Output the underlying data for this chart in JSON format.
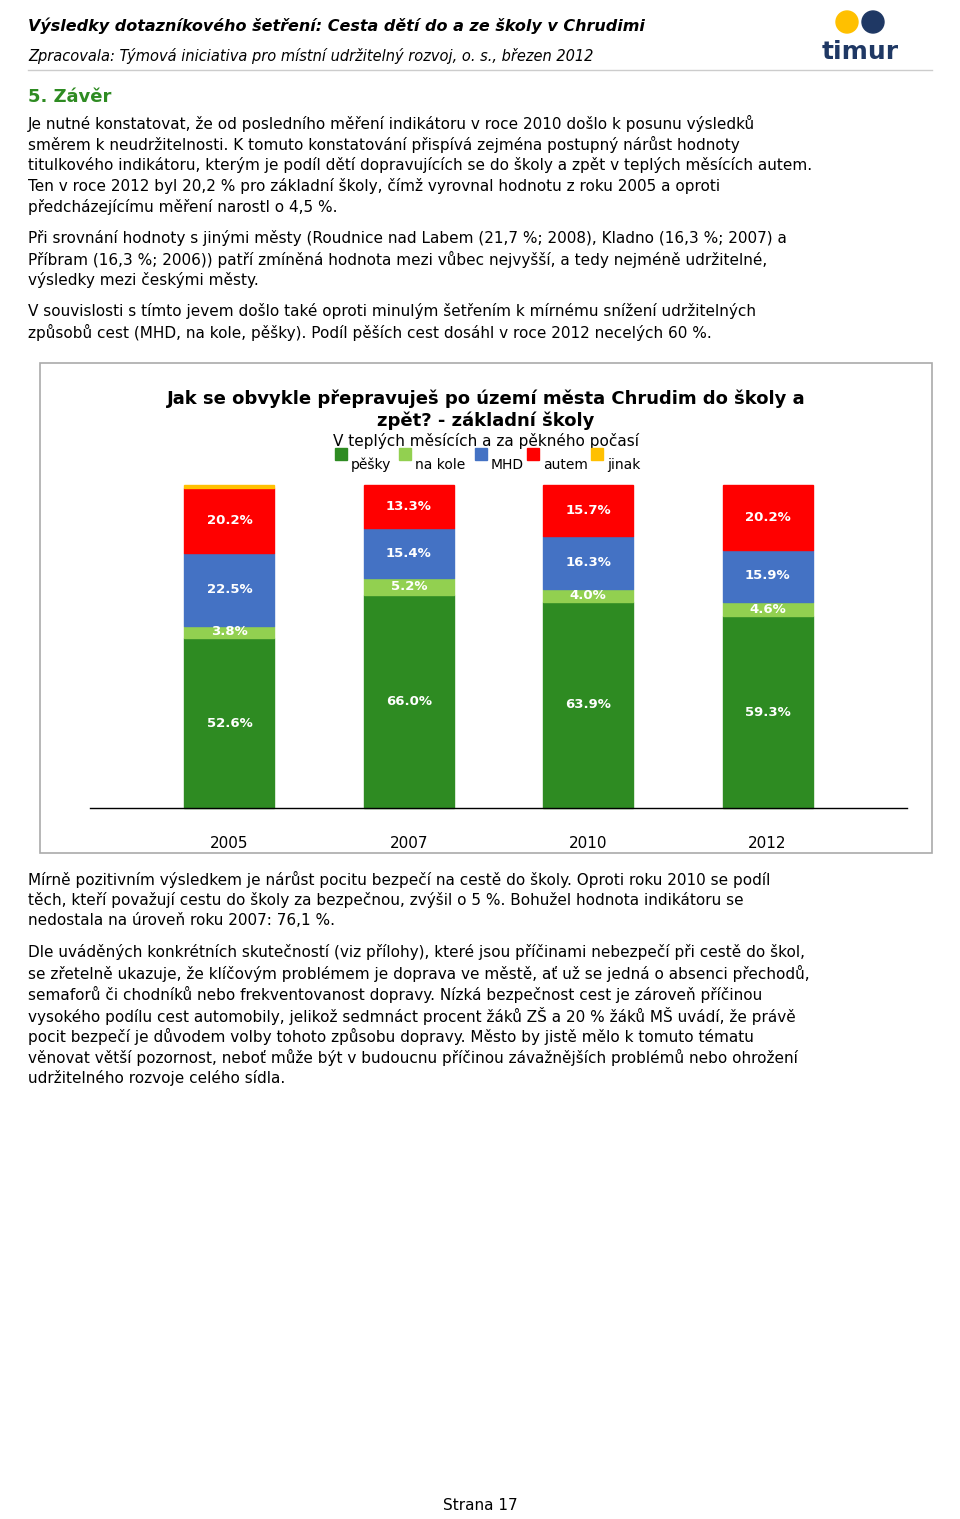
{
  "page_title_line1": "Výsledky dotazníkového šetření: Cesta dětí do a ze školy v Chrudimi",
  "page_subtitle": "Zpracovala: Týmová iniciativa pro místní udržitelný rozvoj, o. s., březen 2012",
  "section_title": "5. Závěr",
  "para1_lines": [
    "Je nutné konstatovat, že od posledního měření indikátoru v roce 2010 došlo k posunu výsledků",
    "směrem k neudržitelnosti. K tomuto konstatování přispívá zejména postupný nárůst hodnoty",
    "titulkového indikátoru, kterým je podíl dětí dopravujících se do školy a zpět v teplých měsících autem.",
    "Ten v roce 2012 byl 20,2 % pro základní školy, čímž vyrovnal hodnotu z roku 2005 a oproti",
    "předcházejícímu měření narostl o 4,5 %."
  ],
  "para2_lines": [
    "Při srovnání hodnoty s jinými městy (Roudnice nad Labem (21,7 %; 2008), Kladno (16,3 %; 2007) a",
    "Příbram (16,3 %; 2006)) patří zmíněná hodnota mezi vůbec nejvyšší, a tedy nejméně udržitelné,",
    "výsledky mezi českými městy."
  ],
  "para3_lines": [
    "V souvislosti s tímto jevem došlo také oproti minulým šetřením k mírnému snížení udržitelných",
    "způsobů cest (MHD, na kole, pěšky). Podíl pěších cest dosáhl v roce 2012 necelých 60 %."
  ],
  "chart_title_line1": "Jak se obvykle přepravuješ po území města Chrudim do školy a",
  "chart_title_line2": "zpět? - základní školy",
  "chart_subtitle": "V teplých měsících a za pěkného počasí",
  "legend_labels": [
    "pěšky",
    "na kole",
    "MHD",
    "autem",
    "jinak"
  ],
  "legend_colors": [
    "#2E8B22",
    "#92D050",
    "#4472C4",
    "#FF0000",
    "#FFC000"
  ],
  "years": [
    "2005",
    "2007",
    "2010",
    "2012"
  ],
  "pesky": [
    52.6,
    66.0,
    63.9,
    59.3
  ],
  "nakole": [
    3.8,
    5.2,
    4.0,
    4.6
  ],
  "MHD": [
    22.5,
    15.4,
    16.3,
    15.9
  ],
  "autem": [
    20.2,
    13.3,
    15.7,
    20.2
  ],
  "jinak": [
    0.9,
    0.0,
    0.0,
    0.0
  ],
  "para4_lines": [
    "Mírně pozitivním výsledkem je nárůst pocitu bezpečí na cestě do školy. Oproti roku 2010 se podíl",
    "těch, kteří považují cestu do školy za bezpečnou, zvýšil o 5 %. Bohužel hodnota indikátoru se",
    "nedostala na úroveň roku 2007: 76,1 %."
  ],
  "para5_lines": [
    "Dle uváděných konkrétních skutečností (viz přílohy), které jsou příčinami nebezpečí při cestě do škol,",
    "se zřetelně ukazuje, že klíčovým problémem je doprava ve městě, ať už se jedná o absenci přechodů,",
    "semaforů či chodníků nebo frekventovanost dopravy. Nízká bezpečnost cest je zároveň příčinou",
    "vysokého podílu cest automobily, jelikož sedmnáct procent žáků ZŠ a 20 % žáků MŠ uvádí, že právě",
    "pocit bezpečí je důvodem volby tohoto způsobu dopravy. Město by jistě mělo k tomuto tématu",
    "věnovat větší pozornost, neboť může být v budoucnu příčinou závažnějších problémů nebo ohrožení",
    "udržitelného rozvoje celého sídla."
  ],
  "page_number": "Strana 17",
  "colors": {
    "pesky": "#2E8B22",
    "nakole": "#92D050",
    "MHD": "#4472C4",
    "autem": "#FF0000",
    "jinak": "#FFC000"
  },
  "section_color": "#2E8B22",
  "header_line_color": "#CCCCCC",
  "chart_border_color": "#AAAAAA"
}
